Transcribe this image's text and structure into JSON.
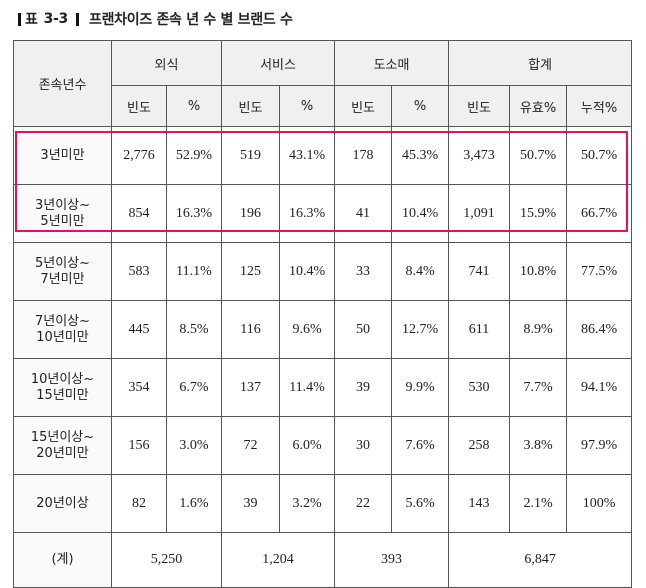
{
  "title": {
    "prefix": "표",
    "number": "3-3",
    "text": "프랜차이즈 존속 년 수 별 브랜드 수"
  },
  "header": {
    "row_label": "존속년수",
    "groups": [
      "외식",
      "서비스",
      "도소매",
      "합계"
    ],
    "sub": [
      "빈도",
      "%",
      "빈도",
      "%",
      "빈도",
      "%",
      "빈도",
      "유효%",
      "누적%"
    ]
  },
  "rows": [
    {
      "label": [
        "3년미만"
      ],
      "cells": [
        "2,776",
        "52.9%",
        "519",
        "43.1%",
        "178",
        "45.3%",
        "3,473",
        "50.7%",
        "50.7%"
      ]
    },
    {
      "label": [
        "3년이상~",
        "5년미만"
      ],
      "cells": [
        "854",
        "16.3%",
        "196",
        "16.3%",
        "41",
        "10.4%",
        "1,091",
        "15.9%",
        "66.7%"
      ]
    },
    {
      "label": [
        "5년이상~",
        "7년미만"
      ],
      "cells": [
        "583",
        "11.1%",
        "125",
        "10.4%",
        "33",
        "8.4%",
        "741",
        "10.8%",
        "77.5%"
      ]
    },
    {
      "label": [
        "7년이상~",
        "10년미만"
      ],
      "cells": [
        "445",
        "8.5%",
        "116",
        "9.6%",
        "50",
        "12.7%",
        "611",
        "8.9%",
        "86.4%"
      ]
    },
    {
      "label": [
        "10년이상~",
        "15년미만"
      ],
      "cells": [
        "354",
        "6.7%",
        "137",
        "11.4%",
        "39",
        "9.9%",
        "530",
        "7.7%",
        "94.1%"
      ]
    },
    {
      "label": [
        "15년이상~",
        "20년미만"
      ],
      "cells": [
        "156",
        "3.0%",
        "72",
        "6.0%",
        "30",
        "7.6%",
        "258",
        "3.8%",
        "97.9%"
      ]
    },
    {
      "label": [
        "20년이상"
      ],
      "cells": [
        "82",
        "1.6%",
        "39",
        "3.2%",
        "22",
        "5.6%",
        "143",
        "2.1%",
        "100%"
      ]
    }
  ],
  "total": {
    "label": "(계)",
    "values": [
      "5,250",
      "1,204",
      "393",
      "6,847"
    ]
  },
  "colors": {
    "highlight": "#e0115f",
    "header_bg": "#f0f0f0"
  }
}
